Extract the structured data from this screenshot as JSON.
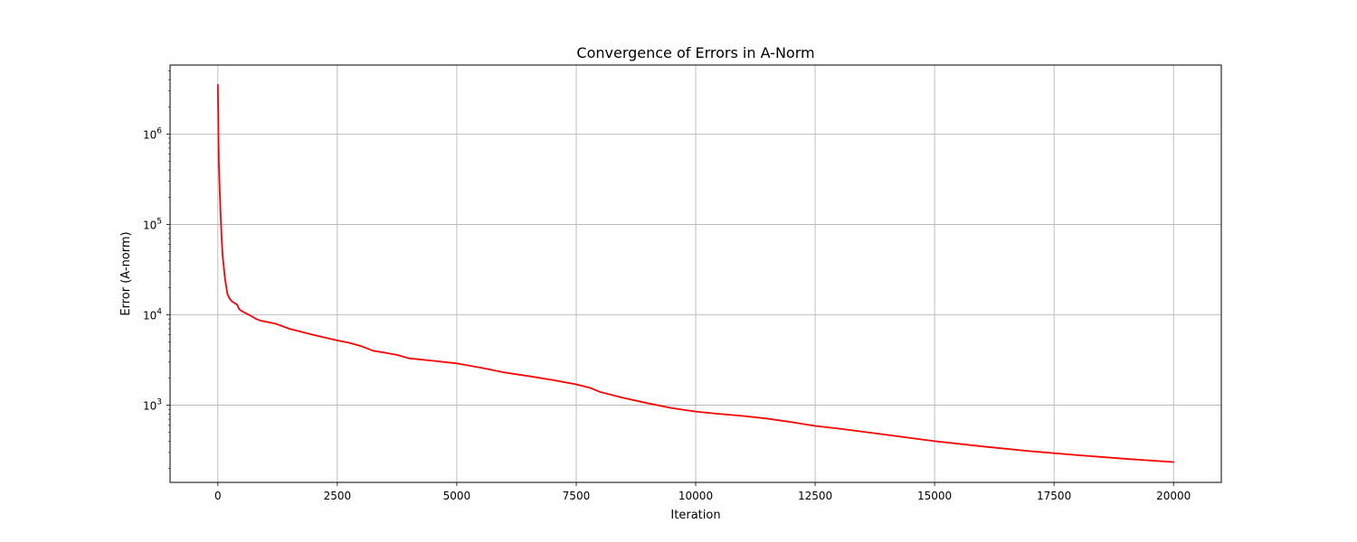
{
  "chart_data": {
    "type": "line",
    "title": "Convergence of Errors in A-Norm",
    "xlabel": "Iteration",
    "ylabel": "Error (A-norm)",
    "xlim": [
      -1000,
      21000
    ],
    "ylim": [
      140,
      5800000
    ],
    "yscale": "log",
    "grid": true,
    "line_color": "#ff0000",
    "grid_color": "#b0b0b0",
    "x_ticks": [
      0,
      2500,
      5000,
      7500,
      10000,
      12500,
      15000,
      17500,
      20000
    ],
    "x_tick_labels": [
      "0",
      "2500",
      "5000",
      "7500",
      "10000",
      "12500",
      "15000",
      "17500",
      "20000"
    ],
    "y_ticks": [
      1000,
      10000,
      100000,
      1000000
    ],
    "y_tick_labels": [
      {
        "base": "10",
        "exp": "3"
      },
      {
        "base": "10",
        "exp": "4"
      },
      {
        "base": "10",
        "exp": "5"
      },
      {
        "base": "10",
        "exp": "6"
      }
    ],
    "series": [
      {
        "x": [
          0,
          20,
          40,
          60,
          80,
          100,
          150,
          200,
          250,
          300,
          350,
          400,
          450,
          500,
          600,
          700,
          800,
          900,
          1000,
          1200,
          1500,
          2000,
          2500,
          2750,
          3000,
          3250,
          3500,
          3750,
          4000,
          4500,
          5000,
          5500,
          6000,
          6500,
          7000,
          7500,
          7800,
          8000,
          8500,
          9000,
          9500,
          10000,
          10500,
          11000,
          11500,
          12000,
          12500,
          13000,
          14000,
          15000,
          16000,
          17000,
          18000,
          19000,
          20000
        ],
        "y": [
          3500000,
          500000,
          230000,
          120000,
          70000,
          45000,
          25000,
          17000,
          15000,
          14000,
          13500,
          13000,
          11500,
          11000,
          10300,
          9700,
          9000,
          8600,
          8400,
          8000,
          7000,
          6000,
          5200,
          4900,
          4500,
          4000,
          3800,
          3600,
          3300,
          3100,
          2900,
          2600,
          2300,
          2100,
          1900,
          1700,
          1550,
          1400,
          1200,
          1050,
          930,
          850,
          800,
          760,
          710,
          650,
          590,
          550,
          470,
          400,
          350,
          310,
          280,
          255,
          235
        ]
      }
    ]
  }
}
